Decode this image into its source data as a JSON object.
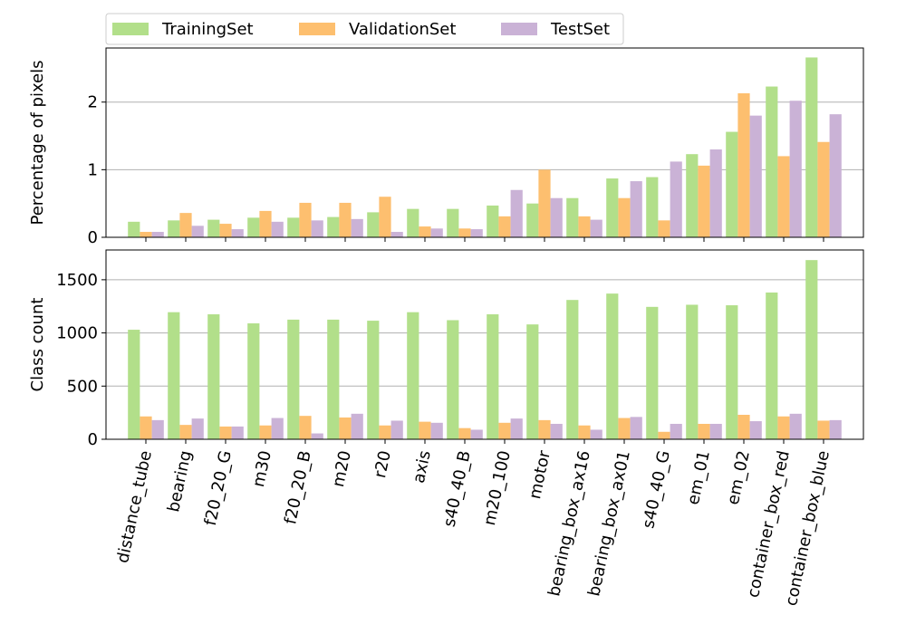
{
  "legend": {
    "placement": "top",
    "entries": [
      "TrainingSet",
      "ValidationSet",
      "TestSet"
    ]
  },
  "colors": {
    "TrainingSet": "#b2df8a",
    "ValidationSet": "#fdbf6f",
    "TestSet": "#cab2d6",
    "grid": "#b0b0b0"
  },
  "chart_data": [
    {
      "type": "bar",
      "ylabel": "Percentage of pixels",
      "ylim": [
        0,
        2.8
      ],
      "yticks": [
        0,
        1,
        2
      ],
      "grid": "horizontal",
      "categories": [
        "distance_tube",
        "bearing",
        "f20_20_G",
        "m30",
        "f20_20_B",
        "m20",
        "r20",
        "axis",
        "s40_40_B",
        "m20_100",
        "motor",
        "bearing_box_ax16",
        "bearing_box_ax01",
        "s40_40_G",
        "em_01",
        "em_02",
        "container_box_red",
        "container_box_blue"
      ],
      "series": [
        {
          "name": "TrainingSet",
          "values": [
            0.23,
            0.25,
            0.26,
            0.29,
            0.29,
            0.3,
            0.37,
            0.42,
            0.42,
            0.47,
            0.5,
            0.58,
            0.87,
            0.89,
            1.23,
            1.56,
            2.23,
            2.66
          ]
        },
        {
          "name": "ValidationSet",
          "values": [
            0.08,
            0.36,
            0.2,
            0.39,
            0.51,
            0.51,
            0.6,
            0.16,
            0.13,
            0.31,
            1.0,
            0.31,
            0.58,
            0.25,
            1.06,
            2.13,
            1.2,
            1.41
          ]
        },
        {
          "name": "TestSet",
          "values": [
            0.08,
            0.17,
            0.12,
            0.23,
            0.25,
            0.27,
            0.08,
            0.13,
            0.12,
            0.7,
            0.58,
            0.26,
            0.83,
            1.12,
            1.3,
            1.8,
            2.02,
            1.82
          ]
        }
      ]
    },
    {
      "type": "bar",
      "ylabel": "Class count",
      "ylim": [
        0,
        1780
      ],
      "yticks": [
        0,
        500,
        1000,
        1500
      ],
      "grid": "horizontal",
      "categories": [
        "distance_tube",
        "bearing",
        "f20_20_G",
        "m30",
        "f20_20_B",
        "m20",
        "r20",
        "axis",
        "s40_40_B",
        "m20_100",
        "motor",
        "bearing_box_ax16",
        "bearing_box_ax01",
        "s40_40_G",
        "em_01",
        "em_02",
        "container_box_red",
        "container_box_blue"
      ],
      "series": [
        {
          "name": "TrainingSet",
          "values": [
            1030,
            1195,
            1175,
            1090,
            1125,
            1125,
            1115,
            1195,
            1120,
            1175,
            1080,
            1310,
            1370,
            1245,
            1265,
            1260,
            1380,
            1685
          ]
        },
        {
          "name": "ValidationSet",
          "values": [
            215,
            135,
            120,
            130,
            220,
            205,
            130,
            165,
            105,
            155,
            180,
            130,
            200,
            70,
            145,
            230,
            215,
            175
          ]
        },
        {
          "name": "TestSet",
          "values": [
            180,
            195,
            120,
            200,
            55,
            240,
            175,
            155,
            90,
            195,
            145,
            90,
            210,
            145,
            145,
            170,
            240,
            180
          ]
        }
      ]
    }
  ]
}
